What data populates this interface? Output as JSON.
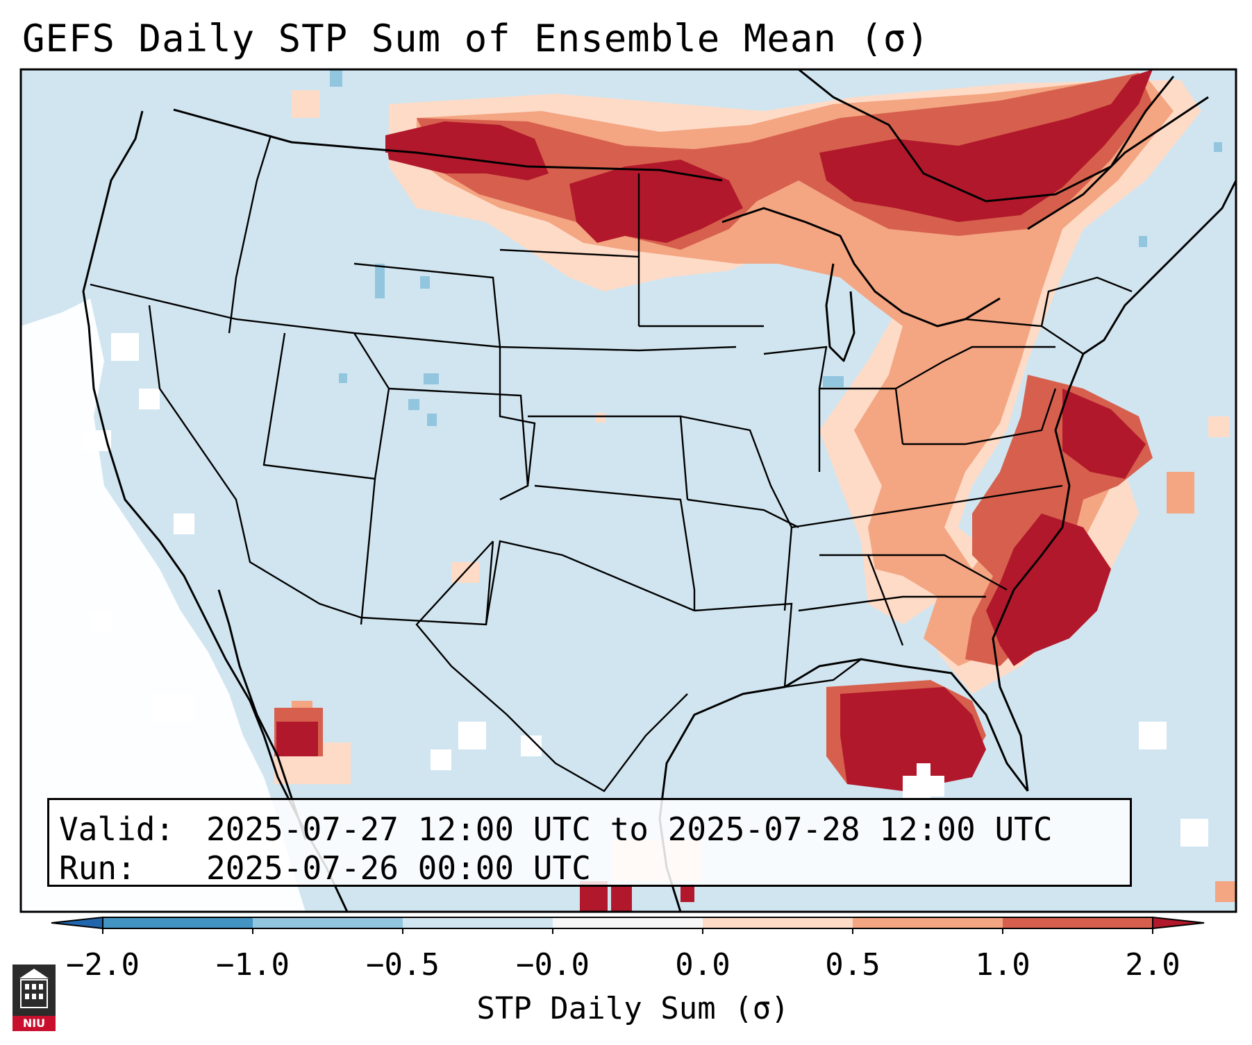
{
  "title": "GEFS Daily STP Sum of Ensemble Mean (σ)",
  "info": {
    "valid_label": "Valid:",
    "valid_value": "2025-07-27 12:00 UTC to 2025-07-28 12:00 UTC",
    "run_label": "Run:",
    "run_value": "2025-07-26 00:00 UTC"
  },
  "colorbar": {
    "title": "STP Daily Sum (σ)",
    "ticks": [
      "−2.0",
      "−1.0",
      "−0.5",
      "−0.0",
      "0.0",
      "0.5",
      "1.0",
      "2.0"
    ],
    "bins": [
      {
        "label": "< -2.0",
        "color": "#2166ac"
      },
      {
        "label": "-2.0 to -1.0",
        "color": "#4393c3"
      },
      {
        "label": "-1.0 to -0.5",
        "color": "#92c5de"
      },
      {
        "label": "-0.5 to -0.0",
        "color": "#d1e5f0"
      },
      {
        "label": "-0.0 to 0.0",
        "color": "#f7f7f7"
      },
      {
        "label": "0.0 to 0.5",
        "color": "#fddbc7"
      },
      {
        "label": "0.5 to 1.0",
        "color": "#f4a582"
      },
      {
        "label": "1.0 to 2.0",
        "color": "#d6604d"
      },
      {
        "label": "> 2.0",
        "color": "#b2182b"
      }
    ]
  },
  "logo": {
    "text": "NIU",
    "icon": "university-building-icon"
  },
  "colors": {
    "background_field": "#d1e5f0",
    "neutral": "#ffffff",
    "high": "#b2182b"
  }
}
